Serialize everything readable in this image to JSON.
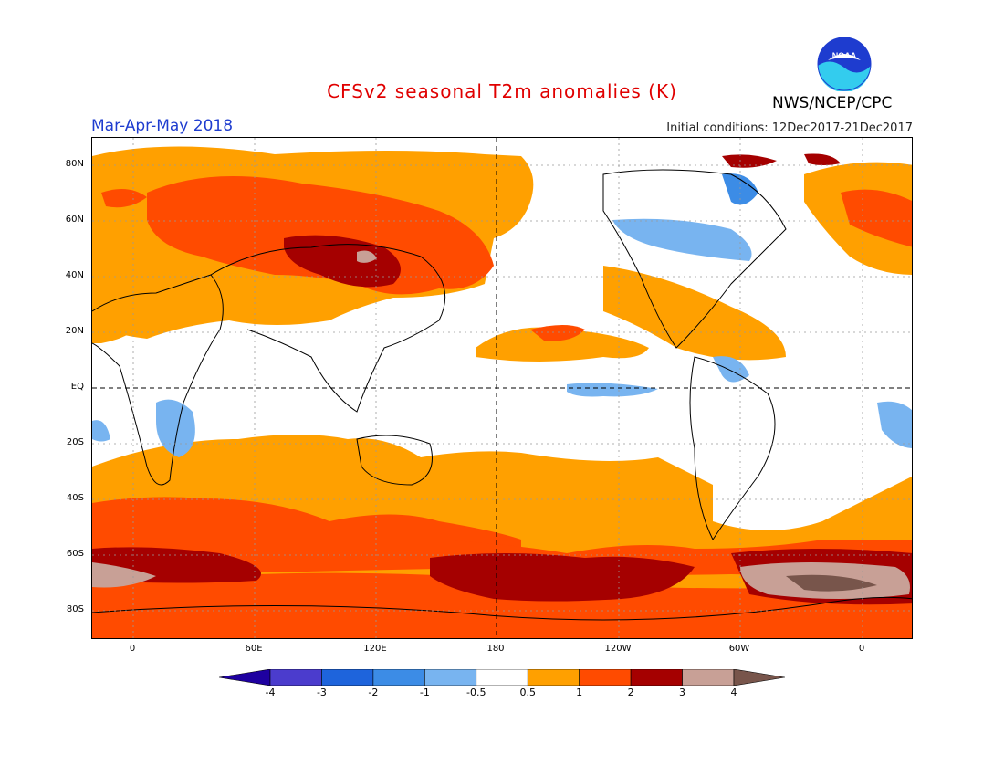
{
  "header": {
    "title": "CFSv2 seasonal T2m anomalies (K)",
    "period": "Mar-Apr-May 2018",
    "agency": "NWS/NCEP/CPC",
    "initial_conditions": "Initial conditions: 12Dec2017-21Dec2017",
    "logo_text": "NOAA"
  },
  "axes": {
    "lat_labels": [
      "80N",
      "60N",
      "40N",
      "20N",
      "EQ",
      "20S",
      "40S",
      "60S",
      "80S"
    ],
    "lon_labels": [
      "0",
      "60E",
      "120E",
      "180",
      "120W",
      "60W",
      "0"
    ]
  },
  "colorbar": {
    "labels": [
      "-4",
      "-3",
      "-2",
      "-1",
      "-0.5",
      "0.5",
      "1",
      "2",
      "3",
      "4"
    ],
    "colors": [
      "#1e00a0",
      "#4b3ccd",
      "#1e64dc",
      "#3c8ce6",
      "#78b4f0",
      "#ffffff",
      "#ffa000",
      "#ff4b00",
      "#a50000",
      "#c8a096",
      "#78554b"
    ]
  },
  "colors": {
    "title": "#e00000",
    "period": "#1e3ccf",
    "orange": "#ffa000",
    "red_orange": "#ff4b00",
    "dark_red": "#a50000",
    "pink_brown": "#c8a096",
    "brown": "#78554b",
    "light_blue": "#78b4f0",
    "mid_blue": "#3c8ce6",
    "dark_blue": "#1e64dc"
  }
}
